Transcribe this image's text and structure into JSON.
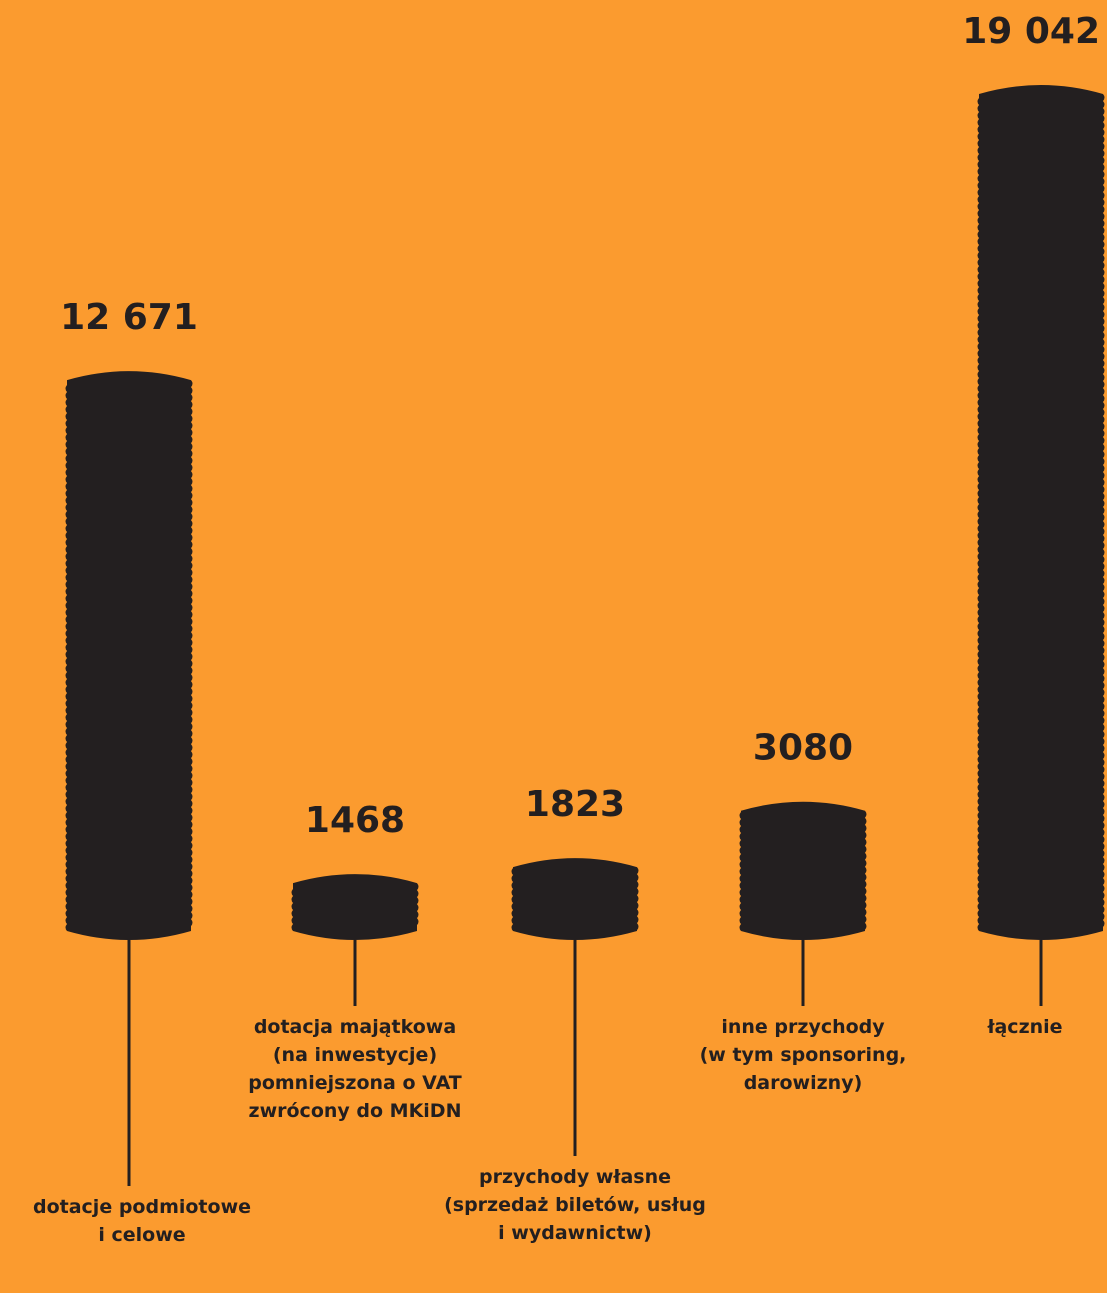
{
  "colors": {
    "background": "#fb9b2f",
    "bar": "#231f20"
  },
  "chart_data": {
    "type": "bar",
    "categories": [
      "dotacje podmiotowe\ni celowe",
      "dotacja majątkowa\n(na inwestycje)\npomniejszona o VAT\nzwrócony do MKiDN",
      "przychody własne\n(sprzedaż biletów, usług\ni wydawnictw)",
      "inne przychody\n(w tym sponsoring,\ndarowizny)",
      "łącznie"
    ],
    "values": [
      12671,
      1468,
      1823,
      3080,
      19042
    ],
    "value_labels": [
      "12 671",
      "1468",
      "1823",
      "3080",
      "19 042"
    ],
    "grid": false,
    "legend": "none"
  }
}
